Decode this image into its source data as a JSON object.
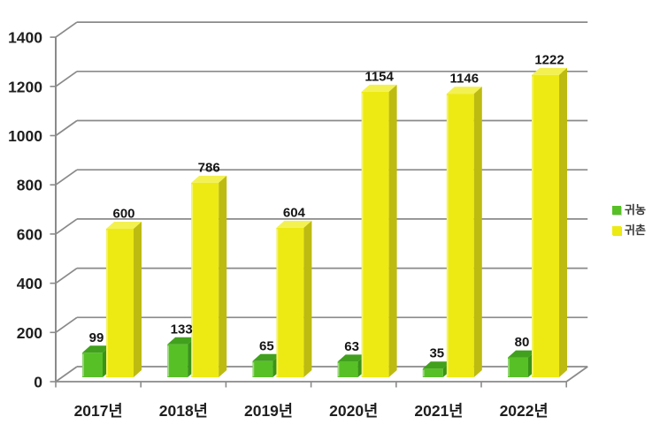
{
  "chart_data": {
    "type": "bar",
    "variant": "3d-clustered-column",
    "title": "",
    "xlabel": "",
    "ylabel": "",
    "categories": [
      "2017년",
      "2018년",
      "2019년",
      "2020년",
      "2021년",
      "2022년"
    ],
    "series": [
      {
        "name": "귀농",
        "color": "#57c026",
        "color_top": "#41a01d",
        "color_side": "#399318",
        "values": [
          99,
          133,
          65,
          63,
          35,
          80
        ]
      },
      {
        "name": "귀촌",
        "color": "#edea13",
        "color_top": "#f3f152",
        "color_side": "#bdbb11",
        "values": [
          600,
          786,
          604,
          1154,
          1146,
          1222
        ]
      }
    ],
    "data_labels_shown": true,
    "ylim": [
      0,
      1400
    ],
    "ytick_step": 200,
    "yticks": [
      0,
      200,
      400,
      600,
      800,
      1000,
      1200,
      1400
    ],
    "grid": true,
    "legend_position": "right"
  },
  "colors": {
    "background": "#ffffff",
    "grid": "#8a8a8a",
    "axis_text": "#1f1f1f",
    "value_text": "#151515"
  }
}
